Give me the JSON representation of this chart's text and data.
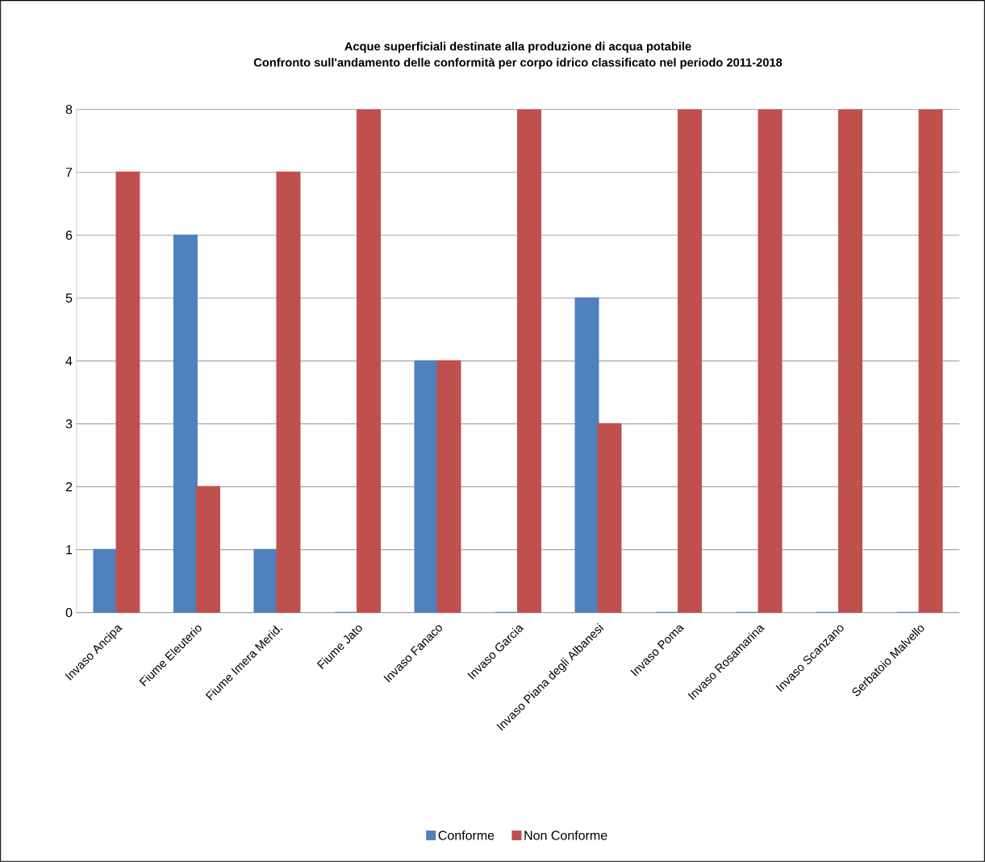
{
  "chart_data": {
    "type": "bar",
    "title": "Acque  superficiali destinate alla produzione di acqua potabile",
    "subtitle": "Confronto sull'andamento delle conformità per corpo idrico classificato nel periodo 2011-2018",
    "categories": [
      "Invaso Ancipa",
      "Fiume Eleuterio",
      "Fiume Imera  Merid.",
      "Fiume Jato",
      "Invaso Fanaco",
      "Invaso Garcia",
      "Invaso Piana degli Albanesi",
      "Invaso Poma",
      "Invaso Rosamarina",
      "Invaso Scanzano",
      "Serbatoio Malvello"
    ],
    "series": [
      {
        "name": "Conforme",
        "color": "#4f81bd",
        "values": [
          1,
          6,
          1,
          0,
          4,
          0,
          5,
          0,
          0,
          0,
          0
        ]
      },
      {
        "name": "Non Conforme",
        "color": "#c0504d",
        "values": [
          7,
          2,
          7,
          8,
          4,
          8,
          3,
          8,
          8,
          8,
          8
        ]
      }
    ],
    "ylim": [
      0,
      8
    ],
    "yticks": [
      0,
      1,
      2,
      3,
      4,
      5,
      6,
      7,
      8
    ],
    "grid": "y",
    "legend": "bottom"
  }
}
